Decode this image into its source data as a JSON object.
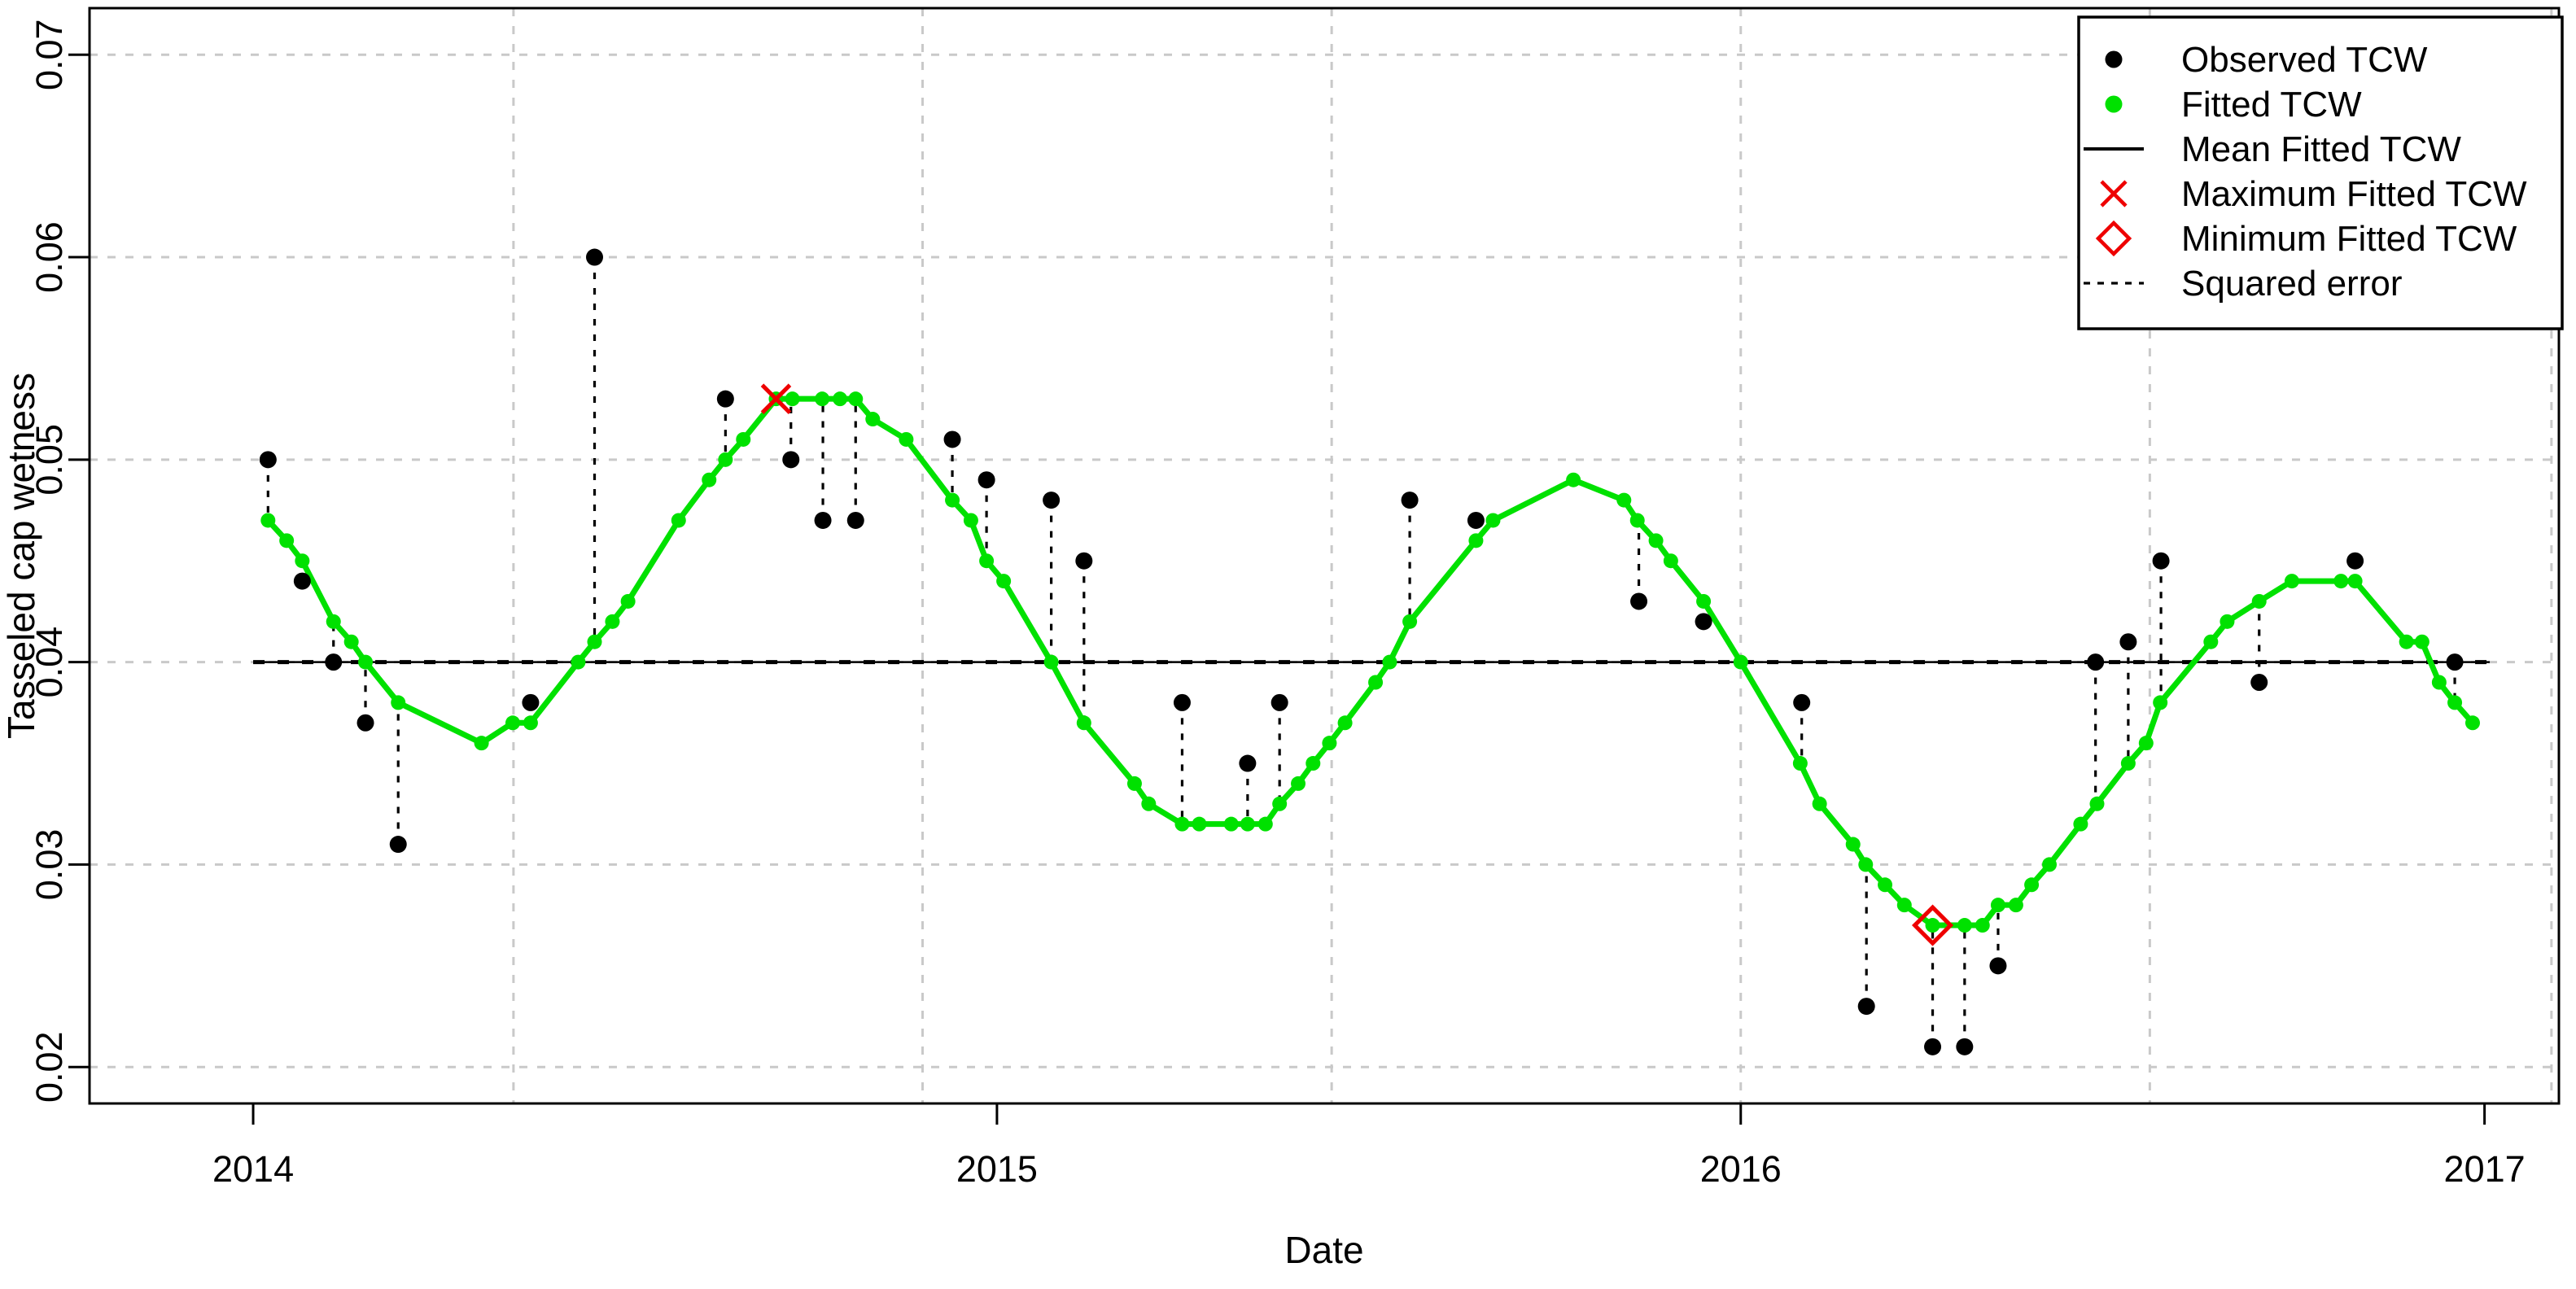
{
  "chart_data": {
    "type": "line",
    "title": "",
    "xlabel": "Date",
    "ylabel": "Tasseled cap wetness",
    "xlim": [
      2013.78,
      2017.1
    ],
    "ylim": [
      0.0182,
      0.0723
    ],
    "x_ticks": [
      2014,
      2015,
      2016,
      2017
    ],
    "y_ticks": [
      0.02,
      0.03,
      0.04,
      0.05,
      0.06,
      0.07
    ],
    "x_gridlines": [
      2014.35,
      2014.9,
      2015.45,
      2016.0,
      2016.55,
      2017.09
    ],
    "grid": true,
    "legend_position": "top-right",
    "mean_fitted_tcw": 0.04,
    "mean_line_span": [
      2014.0,
      2017.007
    ],
    "max_fitted": {
      "x": 2014.703,
      "y": 0.053
    },
    "min_fitted": {
      "x": 2016.258,
      "y": 0.027
    },
    "observed": [
      {
        "x": 2014.02,
        "y": 0.05,
        "fit": 0.047
      },
      {
        "x": 2014.066,
        "y": 0.044,
        "fit": 0.045
      },
      {
        "x": 2014.108,
        "y": 0.04,
        "fit": 0.042
      },
      {
        "x": 2014.151,
        "y": 0.037,
        "fit": 0.04
      },
      {
        "x": 2014.195,
        "y": 0.031,
        "fit": 0.038
      },
      {
        "x": 2014.373,
        "y": 0.038,
        "fit": 0.037
      },
      {
        "x": 2014.459,
        "y": 0.06,
        "fit": 0.041
      },
      {
        "x": 2014.635,
        "y": 0.053,
        "fit": 0.05
      },
      {
        "x": 2014.723,
        "y": 0.05,
        "fit": 0.053
      },
      {
        "x": 2014.766,
        "y": 0.047,
        "fit": 0.053
      },
      {
        "x": 2014.81,
        "y": 0.047,
        "fit": 0.053
      },
      {
        "x": 2014.94,
        "y": 0.051,
        "fit": 0.048
      },
      {
        "x": 2014.986,
        "y": 0.049,
        "fit": 0.045
      },
      {
        "x": 2015.073,
        "y": 0.048,
        "fit": 0.04
      },
      {
        "x": 2015.117,
        "y": 0.045,
        "fit": 0.037
      },
      {
        "x": 2015.249,
        "y": 0.038,
        "fit": 0.032
      },
      {
        "x": 2015.337,
        "y": 0.035,
        "fit": 0.032
      },
      {
        "x": 2015.38,
        "y": 0.038,
        "fit": 0.033
      },
      {
        "x": 2015.555,
        "y": 0.048,
        "fit": 0.042
      },
      {
        "x": 2015.644,
        "y": 0.047,
        "fit": 0.046
      },
      {
        "x": 2015.863,
        "y": 0.043,
        "fit": 0.047
      },
      {
        "x": 2015.95,
        "y": 0.042,
        "fit": 0.043
      },
      {
        "x": 2016.082,
        "y": 0.038,
        "fit": 0.035
      },
      {
        "x": 2016.169,
        "y": 0.023,
        "fit": 0.03
      },
      {
        "x": 2016.258,
        "y": 0.021,
        "fit": 0.027
      },
      {
        "x": 2016.301,
        "y": 0.021,
        "fit": 0.027
      },
      {
        "x": 2016.346,
        "y": 0.025,
        "fit": 0.028
      },
      {
        "x": 2016.477,
        "y": 0.04,
        "fit": 0.033
      },
      {
        "x": 2016.521,
        "y": 0.041,
        "fit": 0.035
      },
      {
        "x": 2016.565,
        "y": 0.045,
        "fit": 0.038
      },
      {
        "x": 2016.697,
        "y": 0.039,
        "fit": 0.043
      },
      {
        "x": 2016.826,
        "y": 0.045,
        "fit": 0.044
      },
      {
        "x": 2016.96,
        "y": 0.04,
        "fit": 0.038
      }
    ],
    "fitted": [
      [
        2014.02,
        0.047
      ],
      [
        2014.045,
        0.046
      ],
      [
        2014.066,
        0.045
      ],
      [
        2014.108,
        0.042
      ],
      [
        2014.132,
        0.041
      ],
      [
        2014.151,
        0.04
      ],
      [
        2014.195,
        0.038
      ],
      [
        2014.307,
        0.036
      ],
      [
        2014.349,
        0.037
      ],
      [
        2014.373,
        0.037
      ],
      [
        2014.437,
        0.04
      ],
      [
        2014.459,
        0.041
      ],
      [
        2014.483,
        0.042
      ],
      [
        2014.504,
        0.043
      ],
      [
        2014.572,
        0.047
      ],
      [
        2014.613,
        0.049
      ],
      [
        2014.635,
        0.05
      ],
      [
        2014.659,
        0.051
      ],
      [
        2014.703,
        0.053
      ],
      [
        2014.725,
        0.053
      ],
      [
        2014.765,
        0.053
      ],
      [
        2014.789,
        0.053
      ],
      [
        2014.81,
        0.053
      ],
      [
        2014.833,
        0.052
      ],
      [
        2014.878,
        0.051
      ],
      [
        2014.94,
        0.048
      ],
      [
        2014.965,
        0.047
      ],
      [
        2014.986,
        0.045
      ],
      [
        2015.009,
        0.044
      ],
      [
        2015.073,
        0.04
      ],
      [
        2015.117,
        0.037
      ],
      [
        2015.185,
        0.034
      ],
      [
        2015.204,
        0.033
      ],
      [
        2015.249,
        0.032
      ],
      [
        2015.272,
        0.032
      ],
      [
        2015.315,
        0.032
      ],
      [
        2015.337,
        0.032
      ],
      [
        2015.361,
        0.032
      ],
      [
        2015.38,
        0.033
      ],
      [
        2015.405,
        0.034
      ],
      [
        2015.425,
        0.035
      ],
      [
        2015.447,
        0.036
      ],
      [
        2015.468,
        0.037
      ],
      [
        2015.509,
        0.039
      ],
      [
        2015.528,
        0.04
      ],
      [
        2015.555,
        0.042
      ],
      [
        2015.644,
        0.046
      ],
      [
        2015.667,
        0.047
      ],
      [
        2015.775,
        0.049
      ],
      [
        2015.843,
        0.048
      ],
      [
        2015.861,
        0.047
      ],
      [
        2015.886,
        0.046
      ],
      [
        2015.906,
        0.045
      ],
      [
        2015.95,
        0.043
      ],
      [
        2016.0,
        0.04
      ],
      [
        2016.08,
        0.035
      ],
      [
        2016.106,
        0.033
      ],
      [
        2016.151,
        0.031
      ],
      [
        2016.168,
        0.03
      ],
      [
        2016.194,
        0.029
      ],
      [
        2016.22,
        0.028
      ],
      [
        2016.258,
        0.027
      ],
      [
        2016.301,
        0.027
      ],
      [
        2016.325,
        0.027
      ],
      [
        2016.346,
        0.028
      ],
      [
        2016.37,
        0.028
      ],
      [
        2016.391,
        0.029
      ],
      [
        2016.415,
        0.03
      ],
      [
        2016.457,
        0.032
      ],
      [
        2016.479,
        0.033
      ],
      [
        2016.521,
        0.035
      ],
      [
        2016.545,
        0.036
      ],
      [
        2016.564,
        0.038
      ],
      [
        2016.632,
        0.041
      ],
      [
        2016.654,
        0.042
      ],
      [
        2016.697,
        0.043
      ],
      [
        2016.741,
        0.044
      ],
      [
        2016.807,
        0.044
      ],
      [
        2016.826,
        0.044
      ],
      [
        2016.895,
        0.041
      ],
      [
        2016.916,
        0.041
      ],
      [
        2016.939,
        0.039
      ],
      [
        2016.96,
        0.038
      ],
      [
        2016.984,
        0.037
      ]
    ]
  },
  "legend": {
    "entries": [
      {
        "symbol": "observed-dot",
        "label": "Observed TCW"
      },
      {
        "symbol": "fitted-dot",
        "label": "Fitted TCW"
      },
      {
        "symbol": "mean-line",
        "label": "Mean Fitted TCW"
      },
      {
        "symbol": "max-x",
        "label": "Maximum Fitted TCW"
      },
      {
        "symbol": "min-diamond",
        "label": "Minimum Fitted TCW"
      },
      {
        "symbol": "squared-error-line",
        "label": "Squared error"
      }
    ]
  },
  "colors": {
    "observed": "#000000",
    "fitted": "#00e100",
    "mean": "#000000",
    "extrema": "#ee0000",
    "error": "#000000",
    "grid": "#c9c9c9",
    "border": "#000000",
    "background": "#ffffff"
  }
}
